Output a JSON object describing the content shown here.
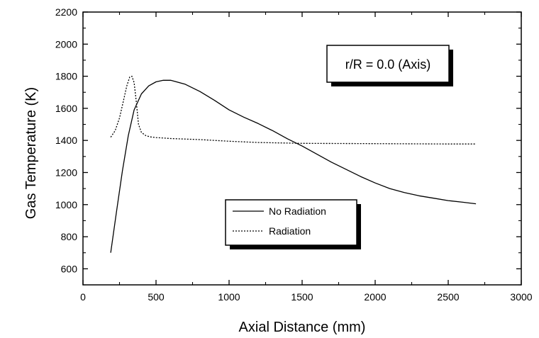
{
  "chart_data": {
    "type": "line",
    "title": "",
    "xlabel": "Axial Distance (mm)",
    "ylabel": "Gas Temperature (K)",
    "xlim": [
      0,
      3000
    ],
    "ylim": [
      500,
      2200
    ],
    "xticks": [
      0,
      500,
      1000,
      1500,
      2000,
      2500,
      3000
    ],
    "yticks": [
      600,
      800,
      1000,
      1200,
      1400,
      1600,
      1800,
      2000,
      2200
    ],
    "grid": false,
    "legend_position": "center-lower",
    "annotation": "r/R = 0.0 (Axis)",
    "series": [
      {
        "name": "No Radiation",
        "style": "solid",
        "x": [
          190,
          230,
          270,
          310,
          350,
          400,
          450,
          500,
          550,
          600,
          700,
          800,
          900,
          1000,
          1100,
          1200,
          1300,
          1400,
          1500,
          1600,
          1700,
          1800,
          1900,
          2000,
          2100,
          2200,
          2300,
          2400,
          2500,
          2600,
          2690
        ],
        "y": [
          700,
          960,
          1210,
          1430,
          1590,
          1690,
          1740,
          1765,
          1775,
          1775,
          1750,
          1705,
          1650,
          1590,
          1545,
          1505,
          1460,
          1410,
          1365,
          1315,
          1265,
          1220,
          1175,
          1135,
          1100,
          1075,
          1055,
          1040,
          1025,
          1015,
          1005
        ]
      },
      {
        "name": "Radiation",
        "style": "dotted",
        "x": [
          190,
          220,
          250,
          275,
          300,
          320,
          335,
          350,
          365,
          380,
          400,
          430,
          460,
          500,
          600,
          800,
          1000,
          1200,
          1500,
          2000,
          2500,
          2690
        ],
        "y": [
          1420,
          1460,
          1540,
          1640,
          1740,
          1795,
          1800,
          1760,
          1640,
          1500,
          1450,
          1430,
          1422,
          1418,
          1412,
          1405,
          1395,
          1387,
          1382,
          1380,
          1378,
          1378
        ]
      }
    ]
  }
}
